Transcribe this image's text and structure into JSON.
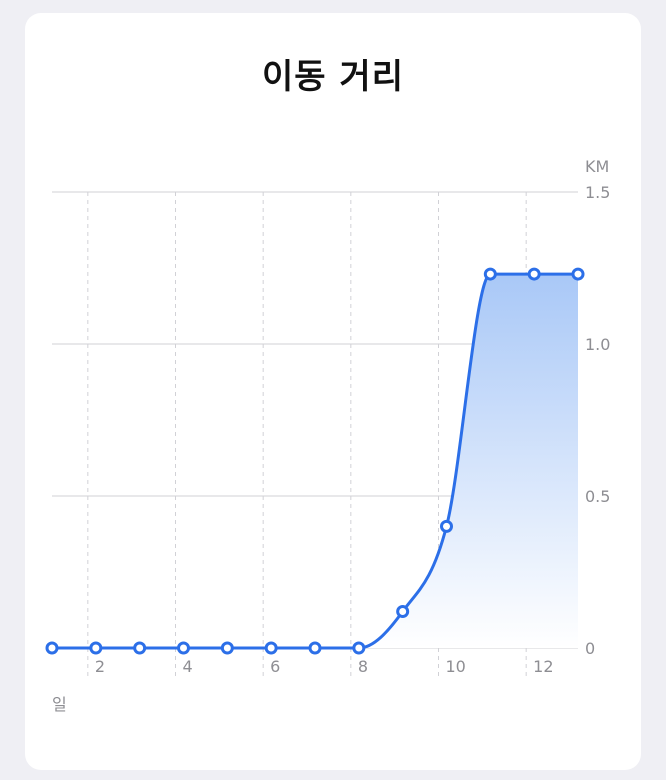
{
  "header": {
    "title": "이동 거리"
  },
  "colors": {
    "accent": "#2c6fe8",
    "grid": "#d1d1d6",
    "area_top": "#a9c8f7",
    "area_bottom": "#ffffff"
  },
  "chart_data": {
    "type": "area",
    "title": "이동 거리",
    "xlabel": "일",
    "ylabel": "KM",
    "x": [
      1,
      2,
      3,
      4,
      5,
      6,
      7,
      8,
      9,
      10,
      11,
      12,
      13
    ],
    "series": [
      {
        "values": [
          0,
          0,
          0,
          0,
          0,
          0,
          0,
          0,
          0.12,
          0.4,
          1.23,
          1.23,
          1.23
        ]
      }
    ],
    "xlim": [
      1,
      13
    ],
    "ylim": [
      0,
      1.5
    ],
    "xticks": [
      2,
      4,
      6,
      8,
      10,
      12
    ],
    "yticks": [
      0,
      0.5,
      1.0,
      1.5
    ],
    "ytick_labels": [
      "0",
      "0.5",
      "1.0",
      "1.5"
    ],
    "grid": true
  }
}
